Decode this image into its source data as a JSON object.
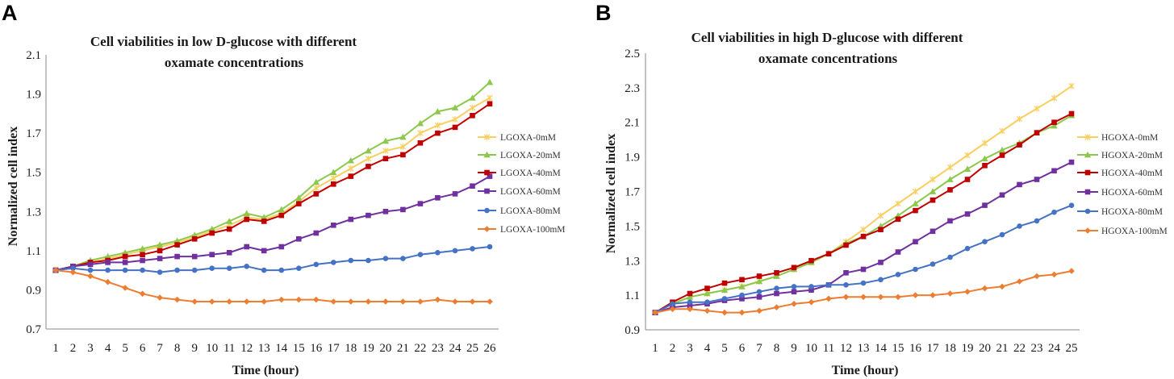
{
  "chart_data": [
    {
      "panel_label": "A",
      "type": "line",
      "title_lines": [
        "Cell viabilities in low D-glucose with different",
        "oxamate concentrations"
      ],
      "xlabel": "Time (hour)",
      "ylabel": "Normalized cell index",
      "x": [
        1,
        2,
        3,
        4,
        5,
        6,
        7,
        8,
        9,
        10,
        11,
        12,
        13,
        14,
        15,
        16,
        17,
        18,
        19,
        20,
        21,
        22,
        23,
        24,
        25,
        26
      ],
      "ylim": [
        0.7,
        2.1
      ],
      "yticks": [
        "0.7",
        "0.9",
        "1.1",
        "1.3",
        "1.5",
        "1.7",
        "1.9",
        "2.1"
      ],
      "grid": false,
      "legend_position": "right",
      "series": [
        {
          "name": "LGOXA-0mM",
          "color": "#F9CF62",
          "marker": "asterisk",
          "values": [
            1.0,
            1.02,
            1.04,
            1.06,
            1.08,
            1.1,
            1.12,
            1.14,
            1.17,
            1.2,
            1.23,
            1.27,
            1.26,
            1.29,
            1.35,
            1.42,
            1.47,
            1.52,
            1.57,
            1.61,
            1.63,
            1.7,
            1.74,
            1.77,
            1.83,
            1.88
          ]
        },
        {
          "name": "LGOXA-20mM",
          "color": "#8CC84B",
          "marker": "triangle",
          "values": [
            1.0,
            1.02,
            1.05,
            1.07,
            1.09,
            1.11,
            1.13,
            1.15,
            1.18,
            1.21,
            1.25,
            1.29,
            1.27,
            1.31,
            1.37,
            1.45,
            1.5,
            1.56,
            1.61,
            1.66,
            1.68,
            1.75,
            1.81,
            1.83,
            1.88,
            1.96
          ]
        },
        {
          "name": "LGOXA-40mM",
          "color": "#C00000",
          "marker": "square",
          "values": [
            1.0,
            1.02,
            1.04,
            1.05,
            1.07,
            1.08,
            1.1,
            1.13,
            1.16,
            1.19,
            1.21,
            1.26,
            1.25,
            1.28,
            1.34,
            1.39,
            1.44,
            1.48,
            1.53,
            1.57,
            1.59,
            1.65,
            1.7,
            1.73,
            1.79,
            1.85
          ]
        },
        {
          "name": "LGOXA-60mM",
          "color": "#7030A0",
          "marker": "square",
          "values": [
            1.0,
            1.02,
            1.03,
            1.04,
            1.04,
            1.05,
            1.06,
            1.07,
            1.07,
            1.08,
            1.09,
            1.12,
            1.1,
            1.12,
            1.16,
            1.19,
            1.23,
            1.26,
            1.28,
            1.3,
            1.31,
            1.34,
            1.37,
            1.39,
            1.43,
            1.48
          ]
        },
        {
          "name": "LGOXA-80mM",
          "color": "#4472C4",
          "marker": "circle",
          "values": [
            1.0,
            1.01,
            1.0,
            1.0,
            1.0,
            1.0,
            0.99,
            1.0,
            1.0,
            1.01,
            1.01,
            1.02,
            1.0,
            1.0,
            1.01,
            1.03,
            1.04,
            1.05,
            1.05,
            1.06,
            1.06,
            1.08,
            1.09,
            1.1,
            1.11,
            1.12
          ]
        },
        {
          "name": "LGOXA-100mM",
          "color": "#ED7D31",
          "marker": "diamond",
          "values": [
            1.0,
            0.99,
            0.97,
            0.94,
            0.91,
            0.88,
            0.86,
            0.85,
            0.84,
            0.84,
            0.84,
            0.84,
            0.84,
            0.85,
            0.85,
            0.85,
            0.84,
            0.84,
            0.84,
            0.84,
            0.84,
            0.84,
            0.85,
            0.84,
            0.84,
            0.84
          ]
        }
      ]
    },
    {
      "panel_label": "B",
      "type": "line",
      "title_lines": [
        "Cell viabilities in high D-glucose with different",
        "oxamate concentrations"
      ],
      "xlabel": "Time (hour)",
      "ylabel": "Normalized cell index",
      "x": [
        1,
        2,
        3,
        4,
        5,
        6,
        7,
        8,
        9,
        10,
        11,
        12,
        13,
        14,
        15,
        16,
        17,
        18,
        19,
        20,
        21,
        22,
        23,
        24,
        25
      ],
      "ylim": [
        0.9,
        2.5
      ],
      "yticks": [
        "0.9",
        "1.1",
        "1.3",
        "1.5",
        "1.7",
        "1.9",
        "2.1",
        "2.3",
        "2.5"
      ],
      "grid": false,
      "legend_position": "right",
      "series": [
        {
          "name": "HGOXA-0mM",
          "color": "#F9CF62",
          "marker": "asterisk",
          "values": [
            1.0,
            1.05,
            1.09,
            1.11,
            1.13,
            1.15,
            1.18,
            1.21,
            1.25,
            1.29,
            1.34,
            1.41,
            1.48,
            1.56,
            1.63,
            1.7,
            1.77,
            1.84,
            1.91,
            1.98,
            2.05,
            2.12,
            2.18,
            2.24,
            2.31
          ]
        },
        {
          "name": "HGOXA-20mM",
          "color": "#8CC84B",
          "marker": "triangle",
          "values": [
            1.0,
            1.05,
            1.09,
            1.11,
            1.13,
            1.15,
            1.18,
            1.21,
            1.25,
            1.29,
            1.34,
            1.4,
            1.44,
            1.5,
            1.56,
            1.63,
            1.7,
            1.77,
            1.83,
            1.89,
            1.94,
            1.98,
            2.04,
            2.08,
            2.14
          ]
        },
        {
          "name": "HGOXA-40mM",
          "color": "#C00000",
          "marker": "square",
          "values": [
            1.0,
            1.06,
            1.11,
            1.14,
            1.17,
            1.19,
            1.21,
            1.23,
            1.26,
            1.3,
            1.34,
            1.39,
            1.44,
            1.48,
            1.54,
            1.59,
            1.65,
            1.71,
            1.77,
            1.85,
            1.91,
            1.97,
            2.04,
            2.1,
            2.15
          ]
        },
        {
          "name": "HGOXA-60mM",
          "color": "#7030A0",
          "marker": "square",
          "values": [
            1.0,
            1.03,
            1.04,
            1.05,
            1.07,
            1.08,
            1.09,
            1.11,
            1.12,
            1.13,
            1.16,
            1.23,
            1.25,
            1.29,
            1.35,
            1.41,
            1.47,
            1.53,
            1.57,
            1.62,
            1.68,
            1.74,
            1.77,
            1.82,
            1.87
          ]
        },
        {
          "name": "HGOXA-80mM",
          "color": "#4472C4",
          "marker": "circle",
          "values": [
            1.0,
            1.05,
            1.06,
            1.06,
            1.08,
            1.1,
            1.12,
            1.14,
            1.15,
            1.15,
            1.16,
            1.16,
            1.17,
            1.19,
            1.22,
            1.25,
            1.28,
            1.32,
            1.37,
            1.41,
            1.45,
            1.5,
            1.53,
            1.58,
            1.62
          ]
        },
        {
          "name": "HGOXA-100mM",
          "color": "#ED7D31",
          "marker": "diamond",
          "values": [
            1.0,
            1.02,
            1.02,
            1.01,
            1.0,
            1.0,
            1.01,
            1.03,
            1.05,
            1.06,
            1.08,
            1.09,
            1.09,
            1.09,
            1.09,
            1.1,
            1.1,
            1.11,
            1.12,
            1.14,
            1.15,
            1.18,
            1.21,
            1.22,
            1.24
          ]
        }
      ]
    }
  ]
}
